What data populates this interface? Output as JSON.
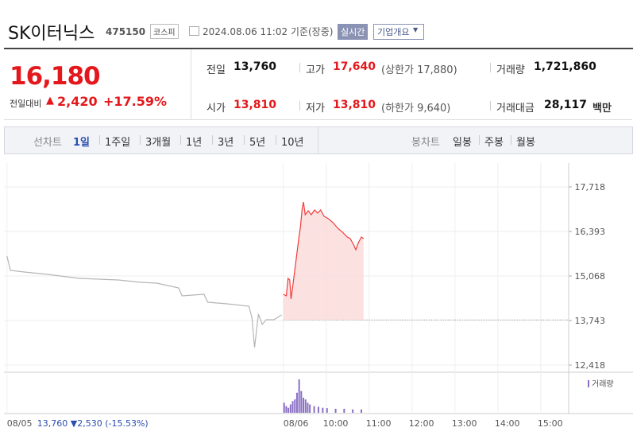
{
  "header": {
    "title": "SK이터닉스",
    "code": "475150",
    "market": "코스피",
    "timestamp": "2024.08.06 11:02 기준(장중)",
    "realtime": "실시간",
    "company_info": "기업개요"
  },
  "quote": {
    "price": "16,180",
    "change_label": "전일대비",
    "change": "2,420",
    "change_pct": "+17.59%",
    "stats": [
      {
        "label": "전일",
        "value": "13,760"
      },
      {
        "label": "고가",
        "value": "17,640",
        "extra": "(상한가 17,880)"
      },
      {
        "label": "거래량",
        "value": "1,721,860"
      },
      {
        "label": "시가",
        "value": "13,810"
      },
      {
        "label": "저가",
        "value": "13,810",
        "extra": "(하한가 9,640)"
      },
      {
        "label": "거래대금",
        "value": "28,117",
        "unit": "백만"
      }
    ]
  },
  "tabs": {
    "line_label": "선차트",
    "line_periods": [
      "1일",
      "1주일",
      "3개월",
      "1년",
      "3년",
      "5년",
      "10년"
    ],
    "candle_label": "봉차트",
    "candle_periods": [
      "일봉",
      "주봉",
      "월봉"
    ]
  },
  "chart_data": {
    "type": "line",
    "ylim": [
      12205,
      18428
    ],
    "yticks": [
      {
        "value": 17718,
        "label": "17,718"
      },
      {
        "value": 16393,
        "label": "16,393"
      },
      {
        "value": 15068,
        "label": "15,068"
      },
      {
        "value": 13743,
        "label": "13,743"
      },
      {
        "value": 12418,
        "label": "12,418"
      }
    ],
    "xlim": [
      2.49,
      15.65
    ],
    "xticks": [
      {
        "value": 2.56,
        "label": "08/05"
      },
      {
        "value": 9,
        "label": "08/06"
      },
      {
        "value": 10,
        "label": "10:00"
      },
      {
        "value": 11,
        "label": "11:00"
      },
      {
        "value": 12,
        "label": "12:00"
      },
      {
        "value": 13,
        "label": "13:00"
      },
      {
        "value": 14,
        "label": "14:00"
      },
      {
        "value": 15,
        "label": "15:00"
      }
    ],
    "prev_day_note": "13,760 ▼2,530 (-15.53%)",
    "reference": 13760,
    "volume_label": "거래량",
    "series": [
      {
        "color": "#b5b5b5",
        "x": [
          2.56,
          2.64,
          2.96,
          3.51,
          4.24,
          5.15,
          5.69,
          6.05,
          6.56,
          6.64,
          7.15,
          7.24,
          7.69,
          8.2,
          8.27,
          8.33,
          8.42,
          8.51,
          8.6,
          8.78,
          8.96
        ],
        "values": [
          15660,
          15234,
          15186,
          15115,
          14997,
          14950,
          14879,
          14855,
          14713,
          14477,
          14524,
          14287,
          14240,
          14169,
          13814,
          12939,
          13932,
          13625,
          13766,
          13766,
          13909
        ]
      },
      {
        "color": "#f03c3c",
        "x": [
          9.0,
          9.07,
          9.11,
          9.15,
          9.18,
          9.22,
          9.29,
          9.36,
          9.4,
          9.44,
          9.47,
          9.51,
          9.58,
          9.65,
          9.73,
          9.8,
          9.87,
          9.95,
          10.05,
          10.16,
          10.27,
          10.38,
          10.49,
          10.56,
          10.64,
          10.69,
          10.75,
          10.82,
          10.87
        ],
        "values": [
          14524,
          14477,
          14997,
          14950,
          14382,
          14761,
          15470,
          16180,
          16535,
          17079,
          17268,
          16890,
          17008,
          16890,
          17032,
          16937,
          17032,
          16843,
          16772,
          16653,
          16488,
          16370,
          16227,
          16180,
          15991,
          15849,
          16062,
          16227,
          16180
        ]
      }
    ],
    "volume": {
      "color": "#8a6fc4",
      "x": [
        9.0,
        9.05,
        9.1,
        9.15,
        9.2,
        9.25,
        9.3,
        9.35,
        9.4,
        9.45,
        9.5,
        9.55,
        9.6,
        9.7,
        9.8,
        9.9,
        10.0,
        10.2,
        10.4,
        10.6,
        10.8
      ],
      "values": [
        30,
        20,
        15,
        25,
        35,
        40,
        60,
        100,
        65,
        45,
        40,
        30,
        25,
        20,
        18,
        15,
        14,
        12,
        12,
        10,
        10
      ]
    }
  }
}
